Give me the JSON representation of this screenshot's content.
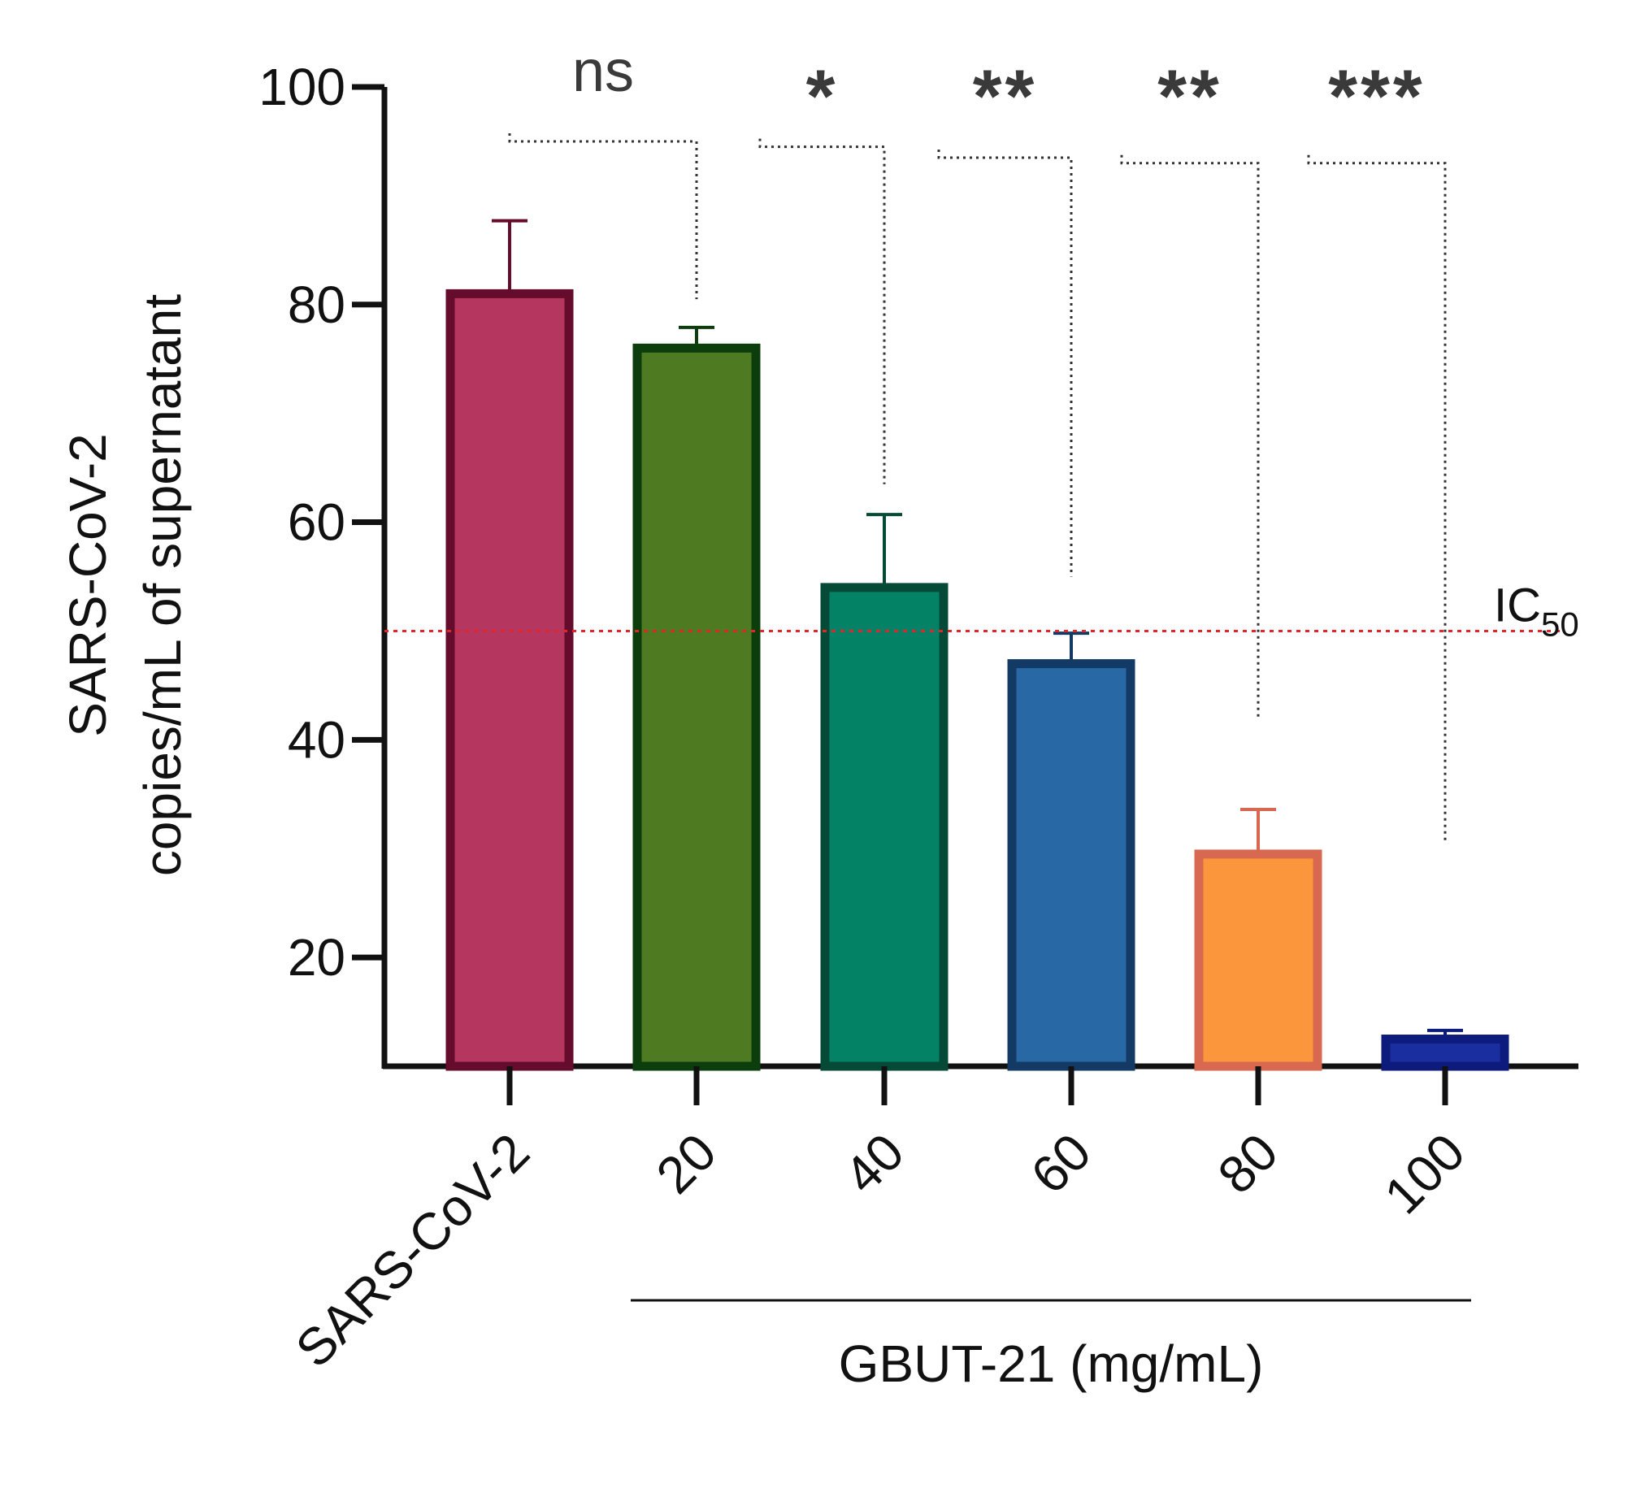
{
  "chart_data": {
    "type": "bar",
    "ylabel_line1": "SARS-CoV-2",
    "ylabel_line2": "copies/mL of supernatant",
    "xgroup_label": "GBUT-21 (mg/mL)",
    "ylim": [
      10,
      100
    ],
    "yticks": [
      "20",
      "40",
      "60",
      "80",
      "100"
    ],
    "categories": [
      "SARS-CoV-2",
      "20",
      "40",
      "60",
      "80",
      "100"
    ],
    "values": [
      81,
      76,
      54,
      47,
      29.5,
      12.5
    ],
    "errors": [
      6.7,
      1.9,
      6.7,
      2.8,
      4.1,
      0.8
    ],
    "bar_fill": [
      "#b5365f",
      "#4e7b21",
      "#048265",
      "#2868a5",
      "#fb963d",
      "#1a2e9f"
    ],
    "bar_stroke": [
      "#650b2b",
      "#0c3d0d",
      "#044a36",
      "#123a64",
      "#d8684f",
      "#0d1b7d"
    ],
    "reference_line": {
      "value": 50,
      "label": "IC",
      "label_sub": "50",
      "color": "#e0262b"
    },
    "significance": [
      {
        "label": "ns",
        "compare_to": "20",
        "bracket_y": 95,
        "drop_y": 80.5
      },
      {
        "label": "*",
        "compare_to": "40",
        "bracket_y": 94.5,
        "drop_y": 63.5
      },
      {
        "label": "**",
        "compare_to": "60",
        "bracket_y": 93.5,
        "drop_y": 55
      },
      {
        "label": "**",
        "compare_to": "80",
        "bracket_y": 93,
        "drop_y": 42
      },
      {
        "label": "***",
        "compare_to": "100",
        "bracket_y": 93,
        "drop_y": 30.5
      }
    ]
  }
}
